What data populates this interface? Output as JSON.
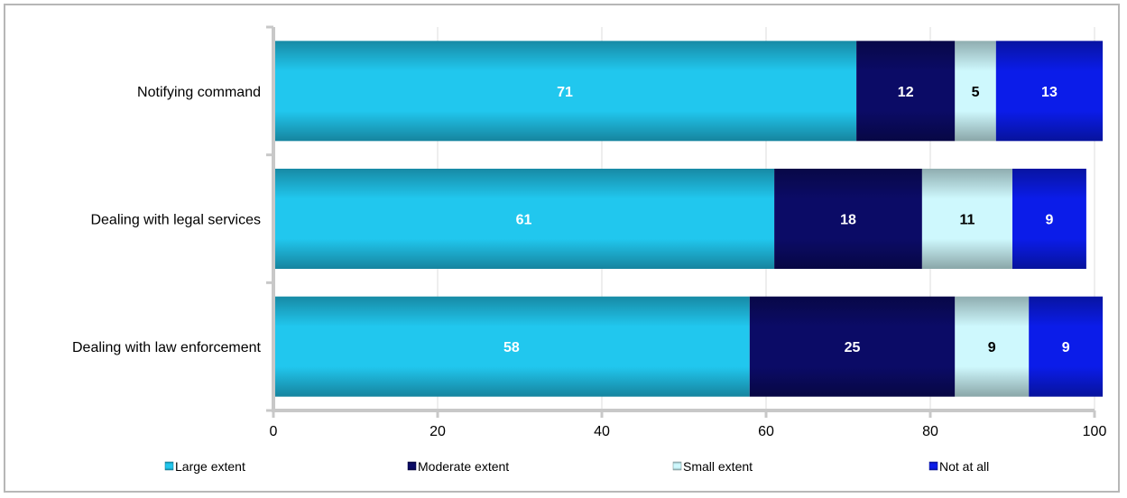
{
  "chart_data": {
    "type": "bar",
    "orientation": "horizontal",
    "stacked": true,
    "title": "",
    "xlabel": "",
    "ylabel": "",
    "xlim": [
      0,
      100
    ],
    "xticks": [
      0,
      20,
      40,
      60,
      80,
      100
    ],
    "grid": true,
    "legend_position": "bottom",
    "categories": [
      "Notifying command",
      "Dealing with legal services",
      "Dealing with law enforcement"
    ],
    "series": [
      {
        "name": "Large extent",
        "color": "#1fb8dc",
        "label_color": "#ffffff",
        "values": [
          71,
          61,
          58
        ]
      },
      {
        "name": "Moderate extent",
        "color": "#0a0a5e",
        "label_color": "#ffffff",
        "values": [
          12,
          18,
          25
        ]
      },
      {
        "name": "Small extent",
        "color": "#bfe6ea",
        "label_color": "#000000",
        "values": [
          5,
          11,
          9
        ]
      },
      {
        "name": "Not at all",
        "color": "#0a1ad8",
        "label_color": "#ffffff",
        "values": [
          13,
          9,
          9
        ]
      }
    ]
  }
}
